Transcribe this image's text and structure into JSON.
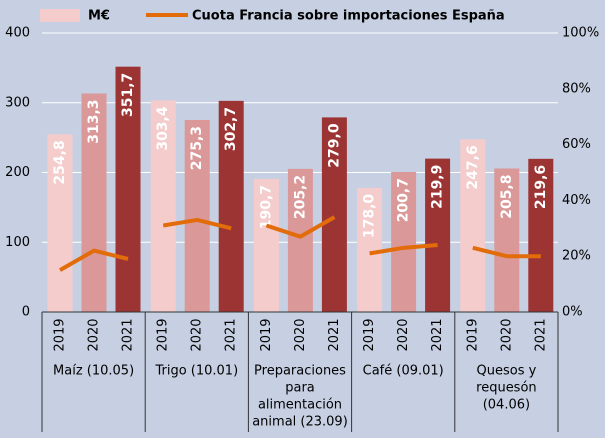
{
  "chart_data": {
    "type": "bar",
    "categories": [
      [
        "Maíz (10.05)"
      ],
      [
        "Trigo (10.01)"
      ],
      [
        "Preparaciones",
        "para",
        "alimentación",
        "animal  (23.09)"
      ],
      [
        "Café (09.01)"
      ],
      [
        "Quesos y",
        "requesón",
        "(04.06)"
      ]
    ],
    "subcategories": [
      "2019",
      "2020",
      "2021"
    ],
    "series": [
      {
        "name": "M€",
        "type": "bar",
        "color": "#f4cccc",
        "colors": [
          "#f4cccc",
          "#da9898",
          "#9c3434"
        ],
        "values": [
          [
            254.8,
            313.3,
            351.7
          ],
          [
            303.4,
            275.3,
            302.7
          ],
          [
            190.7,
            205.2,
            279.0
          ],
          [
            178.0,
            200.7,
            219.9
          ],
          [
            247.6,
            205.8,
            219.6
          ]
        ],
        "value_labels": [
          [
            "254,8",
            "313,3",
            "351,7"
          ],
          [
            "303,4",
            "275,3",
            "302,7"
          ],
          [
            "190,7",
            "205,2",
            "279,0"
          ],
          [
            "178,0",
            "200,7",
            "219,9"
          ],
          [
            "247,6",
            "205,8",
            "219,6"
          ]
        ]
      },
      {
        "name": "Cuota Francia sobre importaciones España",
        "type": "line",
        "axis": "y2",
        "color": "#e36c0a",
        "values": [
          [
            15,
            22,
            19
          ],
          [
            31,
            33,
            30
          ],
          [
            31,
            27,
            34
          ],
          [
            21,
            23,
            24
          ],
          [
            23,
            20,
            20
          ]
        ]
      }
    ],
    "ylim": [
      0,
      400
    ],
    "yticks": [
      0,
      100,
      200,
      300,
      400
    ],
    "y2lim": [
      0,
      100
    ],
    "y2ticks": [
      {
        "value": 0,
        "label": "0%"
      },
      {
        "value": 20,
        "label": "20%"
      },
      {
        "value": 40,
        "label": "40%"
      },
      {
        "value": 60,
        "label": "60%"
      },
      {
        "value": 80,
        "label": "80%"
      },
      {
        "value": 100,
        "label": "100%"
      }
    ],
    "grid": true
  }
}
